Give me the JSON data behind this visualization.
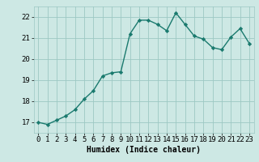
{
  "x": [
    0,
    1,
    2,
    3,
    4,
    5,
    6,
    7,
    8,
    9,
    10,
    11,
    12,
    13,
    14,
    15,
    16,
    17,
    18,
    19,
    20,
    21,
    22,
    23
  ],
  "y": [
    17.0,
    16.9,
    17.1,
    17.3,
    17.6,
    18.1,
    18.5,
    19.2,
    19.35,
    19.4,
    21.2,
    21.85,
    21.85,
    21.65,
    21.35,
    22.2,
    21.65,
    21.1,
    20.95,
    20.55,
    20.45,
    21.05,
    21.45,
    20.75
  ],
  "line_color": "#1a7a6e",
  "marker": "D",
  "marker_size": 2.2,
  "linewidth": 1.0,
  "bg_color": "#cde8e4",
  "grid_color": "#9dc8c3",
  "xlabel": "Humidex (Indice chaleur)",
  "xlabel_fontsize": 7,
  "tick_fontsize": 6.5,
  "ylim": [
    16.5,
    22.5
  ],
  "xlim": [
    -0.5,
    23.5
  ],
  "yticks": [
    17,
    18,
    19,
    20,
    21,
    22
  ],
  "xticks": [
    0,
    1,
    2,
    3,
    4,
    5,
    6,
    7,
    8,
    9,
    10,
    11,
    12,
    13,
    14,
    15,
    16,
    17,
    18,
    19,
    20,
    21,
    22,
    23
  ]
}
